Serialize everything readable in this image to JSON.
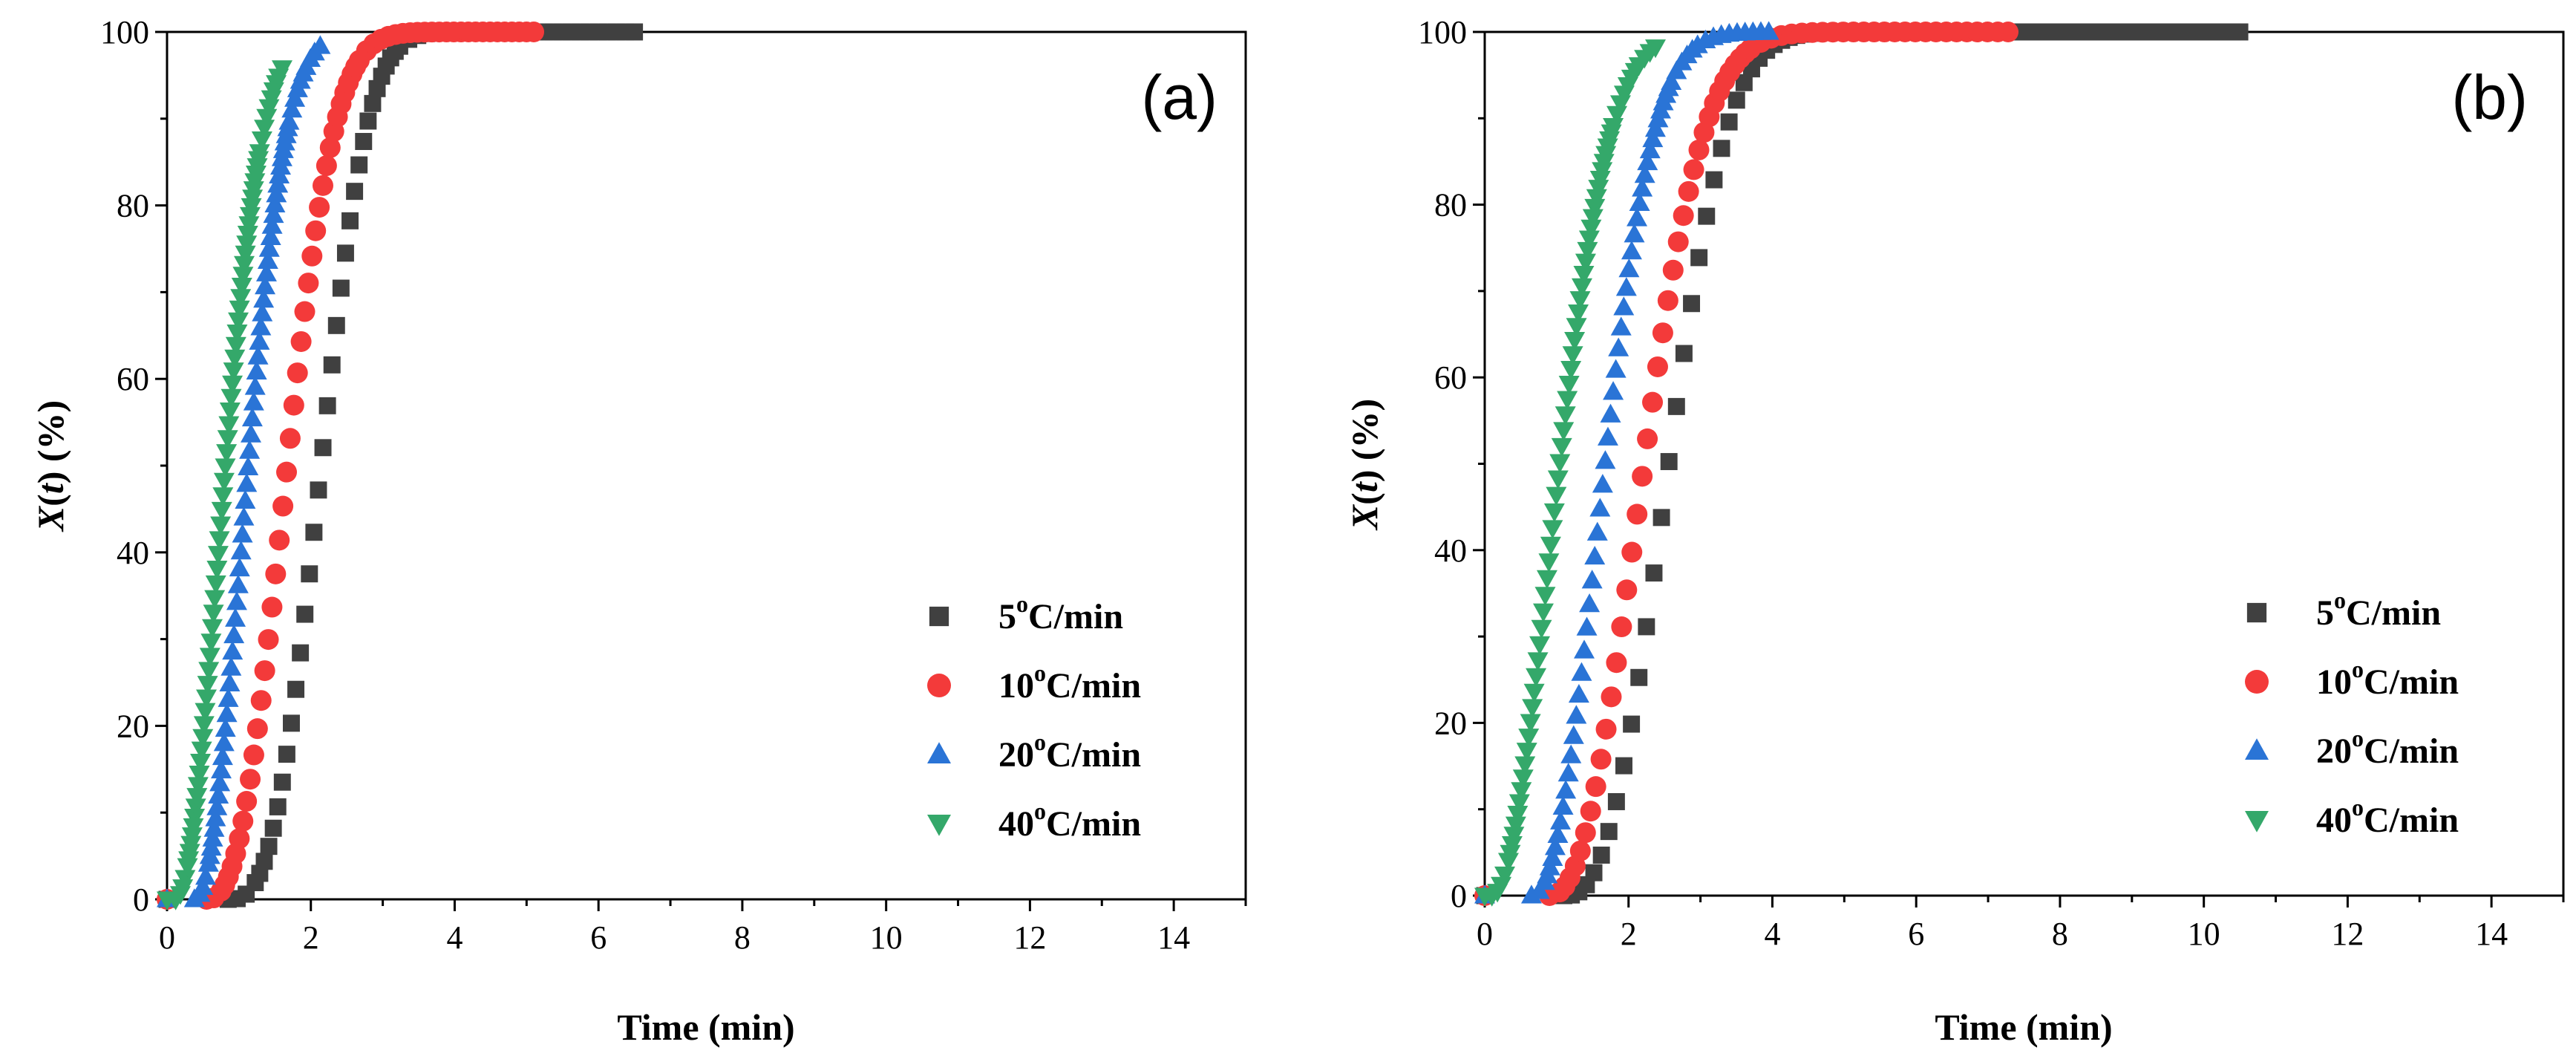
{
  "chart_data": [
    {
      "type": "scatter",
      "panel_label": "(a)",
      "xlabel": "Time (min)",
      "ylabel": {
        "var": "X",
        "arg": "t",
        "unit": "(%)"
      },
      "xlim": [
        0,
        15
      ],
      "ylim": [
        0,
        100
      ],
      "xticks": [
        "0",
        "2",
        "4",
        "6",
        "8",
        "10",
        "12",
        "14"
      ],
      "yticks": [
        "0",
        "20",
        "40",
        "60",
        "80",
        "100"
      ],
      "legend_position": "bottom-right",
      "series": [
        {
          "name": "5ºC/min",
          "rate": "5",
          "unit": "C/min",
          "color": "#404040",
          "marker": "square",
          "t0": 0.85,
          "k": 0.33,
          "n": 2.9,
          "tend": 6.5
        },
        {
          "name": "10ºC/min",
          "rate": "10",
          "unit": "C/min",
          "color": "#f33a3a",
          "marker": "circle",
          "t0": 0.55,
          "k": 0.52,
          "n": 2.5,
          "tend": 5.1
        },
        {
          "name": "20ºC/min",
          "rate": "20",
          "unit": "C/min",
          "color": "#2a74d6",
          "marker": "triangle-up",
          "t0": 0.38,
          "k": 1.27,
          "n": 2.1,
          "tend": 2.15
        },
        {
          "name": "40ºC/min",
          "rate": "40",
          "unit": "C/min",
          "color": "#34a86a",
          "marker": "triangle-down",
          "t0": 0.12,
          "k": 1.45,
          "n": 2.0,
          "tend": 1.6
        }
      ]
    },
    {
      "type": "scatter",
      "panel_label": "(b)",
      "xlabel": "Time (min)",
      "ylabel": {
        "var": "X",
        "arg": "t",
        "unit": "(%)"
      },
      "xlim": [
        0,
        15
      ],
      "ylim": [
        0,
        100
      ],
      "xticks": [
        "0",
        "2",
        "4",
        "6",
        "8",
        "10",
        "12",
        "14"
      ],
      "yticks": [
        "0",
        "20",
        "40",
        "60",
        "80",
        "100"
      ],
      "legend_position": "bottom-right",
      "series": [
        {
          "name": "5ºC/min",
          "rate": "5",
          "unit": "C/min",
          "color": "#404040",
          "marker": "square",
          "t0": 1.1,
          "k": 0.26,
          "n": 2.6,
          "tend": 10.5
        },
        {
          "name": "10ºC/min",
          "rate": "10",
          "unit": "C/min",
          "color": "#f33a3a",
          "marker": "circle",
          "t0": 0.9,
          "k": 0.37,
          "n": 2.3,
          "tend": 7.35
        },
        {
          "name": "20ºC/min",
          "rate": "20",
          "unit": "C/min",
          "color": "#2a74d6",
          "marker": "triangle-up",
          "t0": 0.65,
          "k": 0.66,
          "n": 2.2,
          "tend": 3.95
        },
        {
          "name": "40ºC/min",
          "rate": "40",
          "unit": "C/min",
          "color": "#34a86a",
          "marker": "triangle-down",
          "t0": 0.1,
          "k": 0.78,
          "n": 2.0,
          "tend": 2.4
        }
      ]
    }
  ]
}
